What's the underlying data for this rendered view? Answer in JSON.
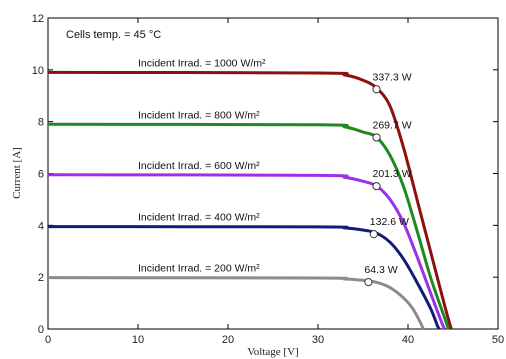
{
  "chart_data": {
    "type": "line",
    "title": "",
    "xlabel": "Voltage [V]",
    "ylabel": "Current [A]",
    "xlim": [
      0,
      50
    ],
    "ylim": [
      0,
      12
    ],
    "xticks": [
      "0",
      "10",
      "20",
      "30",
      "40",
      "50"
    ],
    "yticks": [
      "0",
      "2",
      "4",
      "6",
      "8",
      "10",
      "12"
    ],
    "grid": false,
    "annotation": "Cells temp. = 45 °C",
    "series": [
      {
        "name": "Incident Irrad. = 1000 W/m²",
        "color": "#8b1010",
        "isc": 9.9,
        "points": [
          [
            0,
            9.9
          ],
          [
            30,
            9.88
          ],
          [
            33,
            9.8
          ],
          [
            35,
            9.6
          ],
          [
            36.5,
            9.3
          ],
          [
            38,
            8.6
          ],
          [
            39.5,
            7.0
          ],
          [
            41,
            5.0
          ],
          [
            42.5,
            3.0
          ],
          [
            44,
            1.0
          ],
          [
            44.8,
            0
          ]
        ],
        "mpp": {
          "v": 36.5,
          "i": 9.25,
          "label": "337.3 W"
        }
      },
      {
        "name": "Incident Irrad. = 800 W/m²",
        "color": "#1e8a1e",
        "isc": 7.9,
        "points": [
          [
            0,
            7.9
          ],
          [
            30,
            7.88
          ],
          [
            33,
            7.8
          ],
          [
            35,
            7.6
          ],
          [
            36.5,
            7.4
          ],
          [
            38,
            6.7
          ],
          [
            39.5,
            5.5
          ],
          [
            41,
            3.8
          ],
          [
            42.5,
            2.0
          ],
          [
            44,
            0.5
          ],
          [
            44.5,
            0
          ]
        ],
        "mpp": {
          "v": 36.5,
          "i": 7.39,
          "label": "269.7 W"
        }
      },
      {
        "name": "Incident Irrad. = 600 W/m²",
        "color": "#9a30e8",
        "isc": 5.95,
        "points": [
          [
            0,
            5.95
          ],
          [
            30,
            5.93
          ],
          [
            33,
            5.85
          ],
          [
            35,
            5.7
          ],
          [
            36.5,
            5.52
          ],
          [
            38,
            5.0
          ],
          [
            39.5,
            4.1
          ],
          [
            41,
            2.8
          ],
          [
            42.5,
            1.4
          ],
          [
            43.8,
            0.2
          ],
          [
            44.1,
            0
          ]
        ],
        "mpp": {
          "v": 36.5,
          "i": 5.51,
          "label": "201.3 W"
        }
      },
      {
        "name": "Incident Irrad. = 400 W/m²",
        "color": "#121c78",
        "isc": 3.95,
        "points": [
          [
            0,
            3.95
          ],
          [
            30,
            3.94
          ],
          [
            33,
            3.9
          ],
          [
            35,
            3.82
          ],
          [
            36.5,
            3.7
          ],
          [
            38,
            3.35
          ],
          [
            39.5,
            2.7
          ],
          [
            41,
            1.8
          ],
          [
            42.5,
            0.8
          ],
          [
            43.3,
            0.1
          ],
          [
            43.5,
            0
          ]
        ],
        "mpp": {
          "v": 36.2,
          "i": 3.66,
          "label": "132.6 W"
        }
      },
      {
        "name": "Incident Irrad. = 200 W/m²",
        "color": "#8c8c8c",
        "isc": 1.98,
        "points": [
          [
            0,
            1.98
          ],
          [
            30,
            1.97
          ],
          [
            33,
            1.93
          ],
          [
            35,
            1.88
          ],
          [
            36.5,
            1.8
          ],
          [
            38,
            1.6
          ],
          [
            39.5,
            1.2
          ],
          [
            40.5,
            0.8
          ],
          [
            41.3,
            0.3
          ],
          [
            41.7,
            0
          ]
        ],
        "mpp": {
          "v": 35.6,
          "i": 1.81,
          "label": "64.3 W"
        }
      }
    ]
  }
}
